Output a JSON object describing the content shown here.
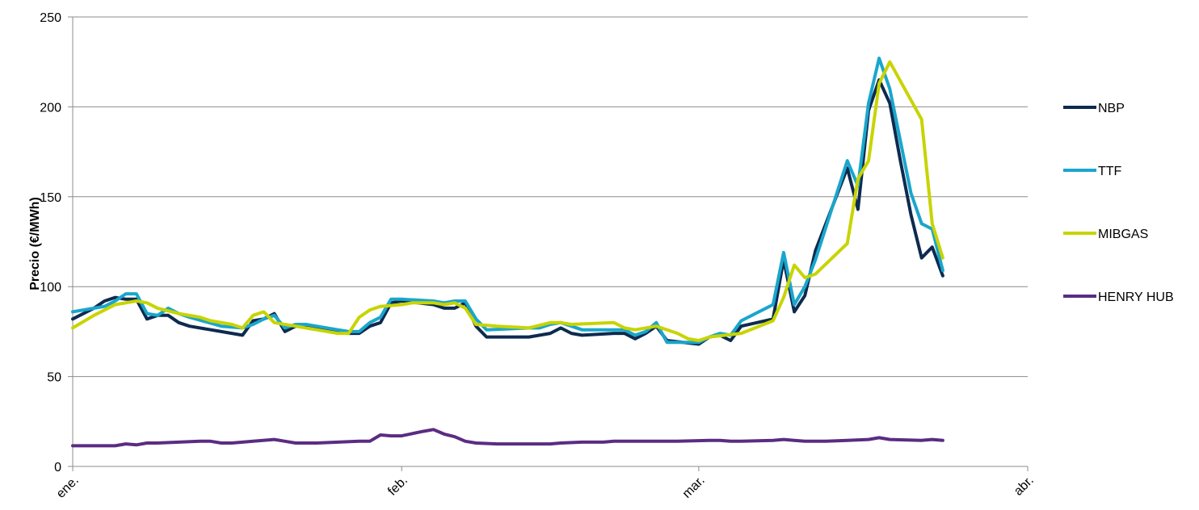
{
  "chart_data": {
    "type": "line",
    "ylabel": "Precio (€/MWh)",
    "ylim": [
      0,
      250
    ],
    "yticks": [
      0,
      50,
      100,
      150,
      200,
      250
    ],
    "xlim": [
      "2022-01-01",
      "2022-04-01"
    ],
    "xticks": [
      {
        "date": "2022-01-01",
        "label": "ene."
      },
      {
        "date": "2022-02-01",
        "label": "feb."
      },
      {
        "date": "2022-03-01",
        "label": "mar."
      },
      {
        "date": "2022-04-01",
        "label": "abr."
      }
    ],
    "grid": true,
    "legend_position": "right",
    "series": [
      {
        "name": "NBP",
        "color": "#0d2b4f",
        "points": [
          [
            "2022-01-01",
            82
          ],
          [
            "2022-01-03",
            88
          ],
          [
            "2022-01-04",
            92
          ],
          [
            "2022-01-05",
            94
          ],
          [
            "2022-01-06",
            93
          ],
          [
            "2022-01-07",
            93
          ],
          [
            "2022-01-08",
            82
          ],
          [
            "2022-01-09",
            84
          ],
          [
            "2022-01-10",
            84
          ],
          [
            "2022-01-11",
            80
          ],
          [
            "2022-01-12",
            78
          ],
          [
            "2022-01-15",
            75
          ],
          [
            "2022-01-17",
            73
          ],
          [
            "2022-01-18",
            81
          ],
          [
            "2022-01-19",
            82
          ],
          [
            "2022-01-20",
            85
          ],
          [
            "2022-01-21",
            75
          ],
          [
            "2022-01-22",
            78
          ],
          [
            "2022-01-23",
            78
          ],
          [
            "2022-01-26",
            75
          ],
          [
            "2022-01-27",
            74
          ],
          [
            "2022-01-28",
            74
          ],
          [
            "2022-01-29",
            78
          ],
          [
            "2022-01-30",
            80
          ],
          [
            "2022-01-31",
            91
          ],
          [
            "2022-02-01",
            92
          ],
          [
            "2022-02-04",
            90
          ],
          [
            "2022-02-05",
            88
          ],
          [
            "2022-02-06",
            88
          ],
          [
            "2022-02-07",
            91
          ],
          [
            "2022-02-08",
            78
          ],
          [
            "2022-02-09",
            72
          ],
          [
            "2022-02-13",
            72
          ],
          [
            "2022-02-14",
            73
          ],
          [
            "2022-02-15",
            74
          ],
          [
            "2022-02-16",
            77
          ],
          [
            "2022-02-17",
            74
          ],
          [
            "2022-02-18",
            73
          ],
          [
            "2022-02-21",
            74
          ],
          [
            "2022-02-22",
            74
          ],
          [
            "2022-02-23",
            71
          ],
          [
            "2022-02-24",
            74
          ],
          [
            "2022-02-25",
            78
          ],
          [
            "2022-02-26",
            70
          ],
          [
            "2022-03-01",
            68
          ],
          [
            "2022-03-02",
            72
          ],
          [
            "2022-03-03",
            73
          ],
          [
            "2022-03-04",
            70
          ],
          [
            "2022-03-05",
            78
          ],
          [
            "2022-03-08",
            82
          ],
          [
            "2022-03-09",
            115
          ],
          [
            "2022-03-10",
            86
          ],
          [
            "2022-03-11",
            95
          ],
          [
            "2022-03-12",
            120
          ],
          [
            "2022-03-15",
            166
          ],
          [
            "2022-03-16",
            143
          ],
          [
            "2022-03-17",
            198
          ],
          [
            "2022-03-18",
            215
          ],
          [
            "2022-03-19",
            202
          ],
          [
            "2022-03-20",
            170
          ],
          [
            "2022-03-21",
            140
          ],
          [
            "2022-03-22",
            116
          ],
          [
            "2022-03-23",
            122
          ],
          [
            "2022-03-24",
            106
          ]
        ]
      },
      {
        "name": "TTF",
        "color": "#1aa6cc",
        "points": [
          [
            "2022-01-01",
            86
          ],
          [
            "2022-01-03",
            88
          ],
          [
            "2022-01-04",
            89
          ],
          [
            "2022-01-05",
            92
          ],
          [
            "2022-01-06",
            96
          ],
          [
            "2022-01-07",
            96
          ],
          [
            "2022-01-08",
            85
          ],
          [
            "2022-01-09",
            84
          ],
          [
            "2022-01-10",
            88
          ],
          [
            "2022-01-11",
            85
          ],
          [
            "2022-01-12",
            83
          ],
          [
            "2022-01-15",
            78
          ],
          [
            "2022-01-17",
            77
          ],
          [
            "2022-01-18",
            79
          ],
          [
            "2022-01-19",
            82
          ],
          [
            "2022-01-20",
            84
          ],
          [
            "2022-01-21",
            77
          ],
          [
            "2022-01-22",
            79
          ],
          [
            "2022-01-23",
            79
          ],
          [
            "2022-01-26",
            76
          ],
          [
            "2022-01-27",
            75
          ],
          [
            "2022-01-28",
            75
          ],
          [
            "2022-01-29",
            80
          ],
          [
            "2022-01-30",
            83
          ],
          [
            "2022-01-31",
            93
          ],
          [
            "2022-02-01",
            93
          ],
          [
            "2022-02-04",
            92
          ],
          [
            "2022-02-05",
            91
          ],
          [
            "2022-02-06",
            92
          ],
          [
            "2022-02-07",
            92
          ],
          [
            "2022-02-08",
            82
          ],
          [
            "2022-02-09",
            76
          ],
          [
            "2022-02-13",
            77
          ],
          [
            "2022-02-14",
            77
          ],
          [
            "2022-02-15",
            79
          ],
          [
            "2022-02-16",
            80
          ],
          [
            "2022-02-17",
            78
          ],
          [
            "2022-02-18",
            76
          ],
          [
            "2022-02-21",
            76
          ],
          [
            "2022-02-22",
            76
          ],
          [
            "2022-02-23",
            73
          ],
          [
            "2022-02-24",
            75
          ],
          [
            "2022-02-25",
            80
          ],
          [
            "2022-02-26",
            69
          ],
          [
            "2022-03-01",
            69
          ],
          [
            "2022-03-02",
            72
          ],
          [
            "2022-03-03",
            74
          ],
          [
            "2022-03-04",
            73
          ],
          [
            "2022-03-05",
            81
          ],
          [
            "2022-03-08",
            90
          ],
          [
            "2022-03-09",
            119
          ],
          [
            "2022-03-10",
            90
          ],
          [
            "2022-03-11",
            100
          ],
          [
            "2022-03-12",
            115
          ],
          [
            "2022-03-15",
            170
          ],
          [
            "2022-03-16",
            156
          ],
          [
            "2022-03-17",
            202
          ],
          [
            "2022-03-18",
            227
          ],
          [
            "2022-03-19",
            210
          ],
          [
            "2022-03-20",
            181
          ],
          [
            "2022-03-21",
            152
          ],
          [
            "2022-03-22",
            135
          ],
          [
            "2022-03-23",
            132
          ],
          [
            "2022-03-24",
            109
          ]
        ]
      },
      {
        "name": "MIBGAS",
        "color": "#c8d400",
        "points": [
          [
            "2022-01-01",
            77
          ],
          [
            "2022-01-03",
            84
          ],
          [
            "2022-01-05",
            90
          ],
          [
            "2022-01-06",
            91
          ],
          [
            "2022-01-07",
            92
          ],
          [
            "2022-01-08",
            91
          ],
          [
            "2022-01-09",
            88
          ],
          [
            "2022-01-11",
            85
          ],
          [
            "2022-01-13",
            83
          ],
          [
            "2022-01-14",
            81
          ],
          [
            "2022-01-16",
            79
          ],
          [
            "2022-01-17",
            77
          ],
          [
            "2022-01-18",
            84
          ],
          [
            "2022-01-19",
            86
          ],
          [
            "2022-01-20",
            80
          ],
          [
            "2022-01-22",
            78
          ],
          [
            "2022-01-24",
            76
          ],
          [
            "2022-01-26",
            74
          ],
          [
            "2022-01-27",
            74
          ],
          [
            "2022-01-28",
            83
          ],
          [
            "2022-01-29",
            87
          ],
          [
            "2022-01-30",
            89
          ],
          [
            "2022-02-01",
            90
          ],
          [
            "2022-02-02",
            91
          ],
          [
            "2022-02-04",
            91
          ],
          [
            "2022-02-05",
            90
          ],
          [
            "2022-02-06",
            91
          ],
          [
            "2022-02-07",
            88
          ],
          [
            "2022-02-08",
            79
          ],
          [
            "2022-02-10",
            78
          ],
          [
            "2022-02-13",
            77
          ],
          [
            "2022-02-15",
            80
          ],
          [
            "2022-02-16",
            80
          ],
          [
            "2022-02-17",
            79
          ],
          [
            "2022-02-21",
            80
          ],
          [
            "2022-02-22",
            77
          ],
          [
            "2022-02-23",
            76
          ],
          [
            "2022-02-25",
            78
          ],
          [
            "2022-02-27",
            74
          ],
          [
            "2022-02-28",
            71
          ],
          [
            "2022-03-01",
            70
          ],
          [
            "2022-03-02",
            72
          ],
          [
            "2022-03-05",
            74
          ],
          [
            "2022-03-08",
            81
          ],
          [
            "2022-03-09",
            94
          ],
          [
            "2022-03-10",
            112
          ],
          [
            "2022-03-11",
            105
          ],
          [
            "2022-03-12",
            107
          ],
          [
            "2022-03-15",
            124
          ],
          [
            "2022-03-16",
            160
          ],
          [
            "2022-03-17",
            170
          ],
          [
            "2022-03-18",
            213
          ],
          [
            "2022-03-19",
            225
          ],
          [
            "2022-03-22",
            193
          ],
          [
            "2022-03-23",
            135
          ],
          [
            "2022-03-24",
            116
          ]
        ]
      },
      {
        "name": "HENRY HUB",
        "color": "#5b2c83",
        "points": [
          [
            "2022-01-01",
            11.5
          ],
          [
            "2022-01-05",
            11.5
          ],
          [
            "2022-01-06",
            12.5
          ],
          [
            "2022-01-07",
            12
          ],
          [
            "2022-01-08",
            13
          ],
          [
            "2022-01-09",
            13
          ],
          [
            "2022-01-11",
            13.5
          ],
          [
            "2022-01-13",
            14
          ],
          [
            "2022-01-14",
            14
          ],
          [
            "2022-01-15",
            13
          ],
          [
            "2022-01-16",
            13
          ],
          [
            "2022-01-18",
            14
          ],
          [
            "2022-01-20",
            15
          ],
          [
            "2022-01-21",
            14
          ],
          [
            "2022-01-22",
            13
          ],
          [
            "2022-01-24",
            13
          ],
          [
            "2022-01-26",
            13.5
          ],
          [
            "2022-01-28",
            14
          ],
          [
            "2022-01-29",
            14
          ],
          [
            "2022-01-30",
            17.5
          ],
          [
            "2022-01-31",
            17
          ],
          [
            "2022-02-01",
            17
          ],
          [
            "2022-02-03",
            19.5
          ],
          [
            "2022-02-04",
            20.5
          ],
          [
            "2022-02-05",
            18
          ],
          [
            "2022-02-06",
            16.5
          ],
          [
            "2022-02-07",
            14
          ],
          [
            "2022-02-08",
            13
          ],
          [
            "2022-02-10",
            12.5
          ],
          [
            "2022-02-11",
            12.5
          ],
          [
            "2022-02-15",
            12.5
          ],
          [
            "2022-02-16",
            13
          ],
          [
            "2022-02-18",
            13.5
          ],
          [
            "2022-02-20",
            13.5
          ],
          [
            "2022-02-21",
            14
          ],
          [
            "2022-02-22",
            14
          ],
          [
            "2022-02-25",
            14
          ],
          [
            "2022-02-27",
            14
          ],
          [
            "2022-03-02",
            14.5
          ],
          [
            "2022-03-03",
            14.5
          ],
          [
            "2022-03-04",
            14
          ],
          [
            "2022-03-05",
            14
          ],
          [
            "2022-03-08",
            14.5
          ],
          [
            "2022-03-09",
            15
          ],
          [
            "2022-03-10",
            14.5
          ],
          [
            "2022-03-11",
            14
          ],
          [
            "2022-03-13",
            14
          ],
          [
            "2022-03-15",
            14.5
          ],
          [
            "2022-03-17",
            15
          ],
          [
            "2022-03-18",
            16
          ],
          [
            "2022-03-19",
            15
          ],
          [
            "2022-03-22",
            14.5
          ],
          [
            "2022-03-23",
            15
          ],
          [
            "2022-03-24",
            14.5
          ]
        ]
      }
    ]
  }
}
